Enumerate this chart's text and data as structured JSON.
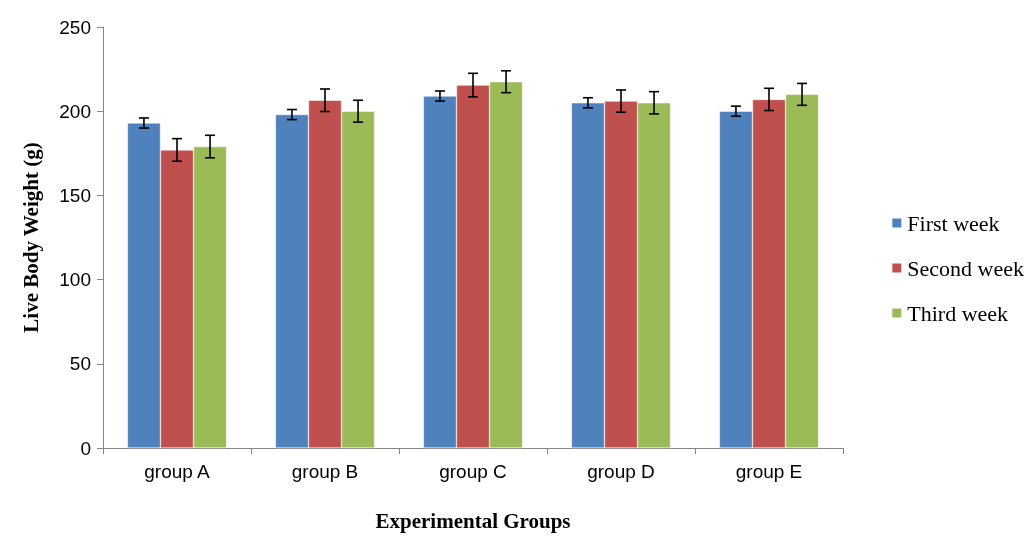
{
  "chart_data": {
    "type": "bar",
    "xlabel": "Experimental Groups",
    "ylabel": "Live Body Weight (g)",
    "categories": [
      "group A",
      "group B",
      "group C",
      "group D",
      "group E"
    ],
    "series": [
      {
        "name": "First week",
        "color": "#4f81bd",
        "values": [
          193,
          198,
          209,
          205,
          200
        ],
        "errors": [
          3,
          3,
          3,
          3,
          3
        ]
      },
      {
        "name": "Second week",
        "color": "#c0504d",
        "values": [
          177,
          206.5,
          215.5,
          206,
          207
        ],
        "errors": [
          6.7,
          6.7,
          7,
          6.6,
          6.6
        ]
      },
      {
        "name": "Third week",
        "color": "#9bbb59",
        "values": [
          179,
          200,
          217.5,
          205,
          210
        ],
        "errors": [
          6.7,
          6.5,
          6.5,
          6.6,
          6.5
        ]
      }
    ],
    "ylim": [
      0,
      250
    ],
    "yticks": [
      0,
      50,
      100,
      150,
      200,
      250
    ],
    "grid": false,
    "legend": "right"
  }
}
